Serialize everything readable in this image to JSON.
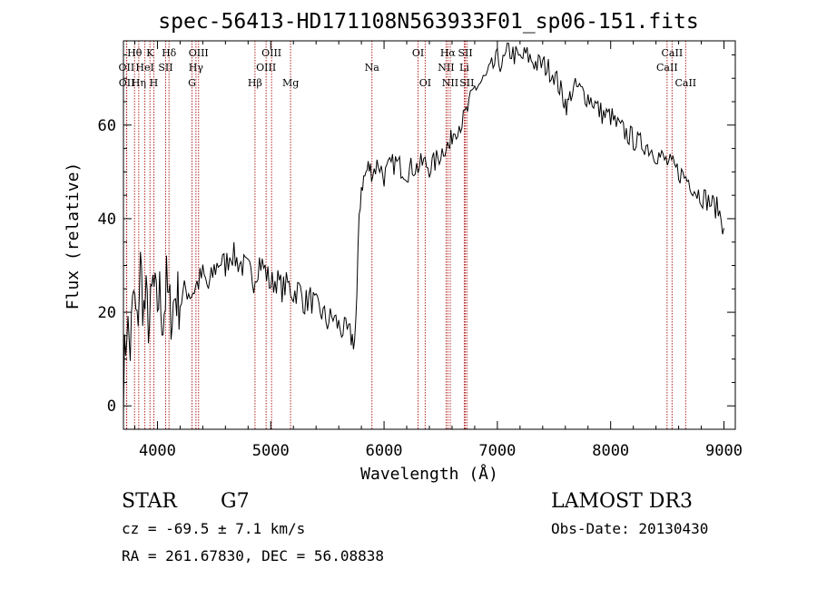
{
  "chart_data": {
    "type": "line",
    "title": "spec-56413-HD171108N563933F01_sp06-151.fits",
    "xlabel": "Wavelength (Å)",
    "ylabel": "Flux (relative)",
    "xlim": [
      3700,
      9100
    ],
    "ylim": [
      -5,
      78
    ],
    "xticks": [
      "4000",
      "5000",
      "6000",
      "7000",
      "8000",
      "9000"
    ],
    "yticks": [
      "0",
      "20",
      "40",
      "60"
    ],
    "series": [
      {
        "x": [
          3700,
          3730,
          3760,
          3790,
          3820,
          3850,
          3880,
          3900,
          3930,
          3960,
          3990,
          4020,
          4050,
          4080,
          4100,
          4130,
          4160,
          4200,
          4250,
          4300,
          4350,
          4400,
          4450,
          4500,
          4550,
          4600,
          4650,
          4700,
          4750,
          4800,
          4850,
          4900,
          4950,
          5000,
          5050,
          5100,
          5150,
          5200,
          5250,
          5300,
          5350,
          5400,
          5450,
          5500,
          5550,
          5600,
          5650,
          5700,
          5740,
          5760,
          5780,
          5800,
          5830,
          5860,
          5900,
          5950,
          6000,
          6050,
          6100,
          6150,
          6200,
          6250,
          6300,
          6350,
          6400,
          6450,
          6500,
          6550,
          6580,
          6600,
          6650,
          6700,
          6750,
          6800,
          6850,
          6900,
          6950,
          7000,
          7050,
          7100,
          7150,
          7200,
          7250,
          7300,
          7350,
          7400,
          7450,
          7500,
          7550,
          7580,
          7620,
          7650,
          7700,
          7750,
          7800,
          7850,
          7900,
          7950,
          8000,
          8050,
          8100,
          8150,
          8200,
          8250,
          8300,
          8350,
          8400,
          8450,
          8500,
          8550,
          8600,
          8650,
          8700,
          8750,
          8800,
          8850,
          8900,
          8950,
          9000
        ],
        "y": [
          5,
          18,
          12,
          24,
          16,
          30,
          20,
          22,
          17,
          26,
          21,
          24,
          18,
          26,
          21,
          20,
          24,
          22,
          25,
          24,
          26,
          28,
          25,
          29,
          31,
          30,
          33,
          31,
          30,
          29,
          27,
          31,
          29,
          26,
          27,
          25,
          26,
          24,
          25,
          22,
          23,
          21,
          20,
          18,
          19,
          17,
          16,
          15,
          14,
          22,
          41,
          47,
          49,
          51,
          50,
          52,
          49,
          51,
          52,
          51,
          50,
          51,
          51,
          52,
          51,
          52,
          54,
          56,
          55,
          58,
          60,
          61,
          64,
          68,
          69,
          70,
          72,
          74,
          73,
          76,
          75,
          74,
          75,
          74,
          73,
          73,
          72,
          71,
          68,
          66,
          64,
          67,
          68,
          67,
          66,
          65,
          63,
          62,
          62,
          60,
          59,
          58,
          57,
          56,
          56,
          55,
          54,
          53,
          52,
          51,
          50,
          49,
          48,
          46,
          45,
          44,
          43,
          42,
          38
        ]
      }
    ],
    "lines": [
      {
        "label": "Hθ",
        "x": 3798,
        "row": 1
      },
      {
        "label": "OII",
        "x": 3727,
        "row": 2
      },
      {
        "label": "OII",
        "x": 3729,
        "row": 3
      },
      {
        "label": "K",
        "x": 3934,
        "row": 1
      },
      {
        "label": "HeI",
        "x": 3889,
        "row": 2
      },
      {
        "label": "Hη",
        "x": 3835,
        "row": 3
      },
      {
        "label": "SII",
        "x": 4072,
        "row": 2
      },
      {
        "label": "H",
        "x": 3968,
        "row": 3
      },
      {
        "label": "Hδ",
        "x": 4102,
        "row": 1
      },
      {
        "label": "OIII",
        "x": 4363,
        "row": 1
      },
      {
        "label": "Hγ",
        "x": 4340,
        "row": 2
      },
      {
        "label": "G",
        "x": 4305,
        "row": 3
      },
      {
        "label": "OIII",
        "x": 5007,
        "row": 1
      },
      {
        "label": "OIII",
        "x": 4959,
        "row": 2
      },
      {
        "label": "Hβ",
        "x": 4861,
        "row": 3
      },
      {
        "label": "Mg",
        "x": 5175,
        "row": 3
      },
      {
        "label": "Na",
        "x": 5893,
        "row": 2
      },
      {
        "label": "OI",
        "x": 6300,
        "row": 1
      },
      {
        "label": "OI",
        "x": 6363,
        "row": 3
      },
      {
        "label": "Hα",
        "x": 6563,
        "row": 1
      },
      {
        "label": "NII",
        "x": 6548,
        "row": 2
      },
      {
        "label": "NII",
        "x": 6584,
        "row": 3
      },
      {
        "label": "SII",
        "x": 6717,
        "row": 1
      },
      {
        "label": "Li",
        "x": 6708,
        "row": 2
      },
      {
        "label": "SII",
        "x": 6731,
        "row": 3
      },
      {
        "label": "CaII",
        "x": 8542,
        "row": 1
      },
      {
        "label": "CaII",
        "x": 8498,
        "row": 2
      },
      {
        "label": "CaII",
        "x": 8662,
        "row": 3
      }
    ]
  },
  "info": {
    "object_class": "STAR",
    "subclass": "G7",
    "cz": "cz = -69.5 ± 7.1 km/s",
    "coords": "RA = 261.67830, DEC =  56.08838",
    "survey": "LAMOST DR3",
    "obs_date": "Obs-Date: 20130430"
  },
  "colors": {
    "spectrum": "#000000",
    "lines": "#b22222"
  }
}
